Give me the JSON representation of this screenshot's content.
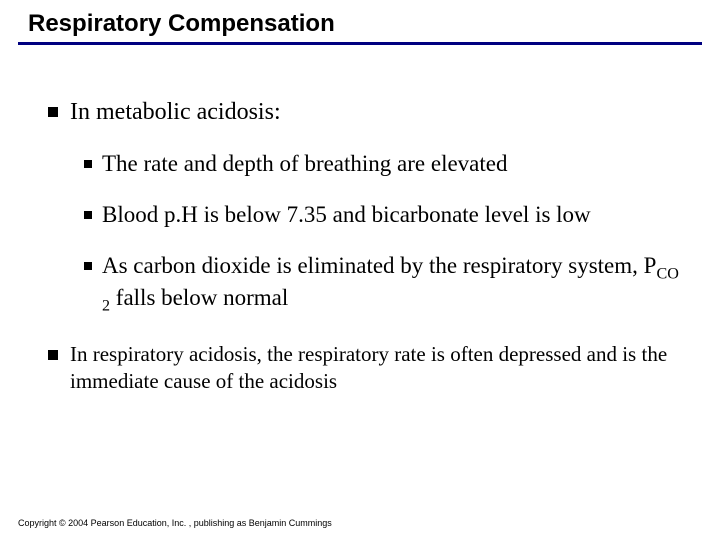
{
  "title": "Respiratory Compensation",
  "colors": {
    "underline": "#000080",
    "bullet": "#000000",
    "text": "#000000",
    "background": "#ffffff"
  },
  "typography": {
    "title_font": "Arial",
    "title_size_pt": 24,
    "title_weight": "bold",
    "body_font": "Times New Roman",
    "level1_size_pt": 24,
    "level2_size_pt": 23,
    "footer_size_pt": 9
  },
  "bullets": {
    "level1": [
      {
        "text": "In metabolic acidosis:",
        "children": [
          "The rate and depth of breathing are elevated",
          "Blood p.H is below 7.35 and bicarbonate level is low",
          "As carbon dioxide is eliminated by the respiratory system, P_CO2 falls below normal"
        ]
      },
      {
        "text": "In respiratory acidosis, the respiratory rate is often depressed and is the immediate cause of the acidosis",
        "children": []
      }
    ]
  },
  "sub_point3_prefix": "As carbon dioxide is eliminated by the respiratory system, P",
  "sub_point3_sub": "CO 2",
  "sub_point3_suffix": " falls below normal",
  "footer": "Copyright © 2004 Pearson Education, Inc. , publishing as Benjamin Cummings"
}
